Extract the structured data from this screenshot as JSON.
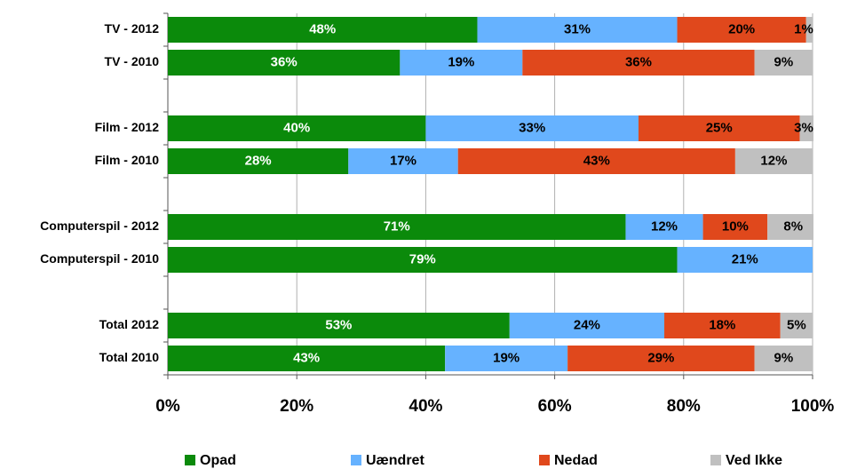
{
  "chart_data": {
    "type": "stacked-bar-horizontal",
    "categories": [
      "TV - 2012",
      "TV - 2010",
      null,
      "Film - 2012",
      "Film - 2010",
      null,
      "Computerspil - 2012",
      "Computerspil - 2010",
      null,
      "Total 2012",
      "Total 2010"
    ],
    "series": [
      {
        "name": "Opad",
        "color": "#0b8a0b",
        "values": [
          48,
          36,
          null,
          40,
          28,
          null,
          71,
          79,
          null,
          53,
          43
        ],
        "value_labels": [
          "48%",
          "36%",
          null,
          "40%",
          "28%",
          null,
          "71%",
          "79%",
          null,
          "53%",
          "43%"
        ]
      },
      {
        "name": "Uændret",
        "color": "#66b2ff",
        "values": [
          31,
          19,
          null,
          33,
          17,
          null,
          12,
          21,
          null,
          24,
          19
        ],
        "value_labels": [
          "31%",
          "19%",
          null,
          "33%",
          "17%",
          null,
          "12%",
          "21%",
          null,
          "24%",
          "19%"
        ]
      },
      {
        "name": "Nedad",
        "color": "#e0481c",
        "values": [
          20,
          36,
          null,
          25,
          43,
          null,
          10,
          null,
          null,
          18,
          29
        ],
        "value_labels": [
          "20%",
          "36%",
          null,
          "25%",
          "43%",
          null,
          "10%",
          null,
          null,
          "18%",
          "29%"
        ]
      },
      {
        "name": "Ved Ikke",
        "color": "#c0c0c0",
        "values": [
          1,
          9,
          null,
          3,
          12,
          null,
          8,
          null,
          null,
          5,
          9
        ],
        "value_labels": [
          "1%",
          "9%",
          null,
          "3%",
          "12%",
          null,
          "8%",
          null,
          null,
          "5%",
          "9%"
        ]
      }
    ],
    "xlim": [
      0,
      100
    ],
    "xticks": [
      {
        "value": 0,
        "label": "0%"
      },
      {
        "value": 20,
        "label": "20%"
      },
      {
        "value": 40,
        "label": "40%"
      },
      {
        "value": 60,
        "label": "60%"
      },
      {
        "value": 80,
        "label": "80%"
      },
      {
        "value": 100,
        "label": "100%"
      }
    ],
    "grid": true,
    "legend": "bottom"
  }
}
